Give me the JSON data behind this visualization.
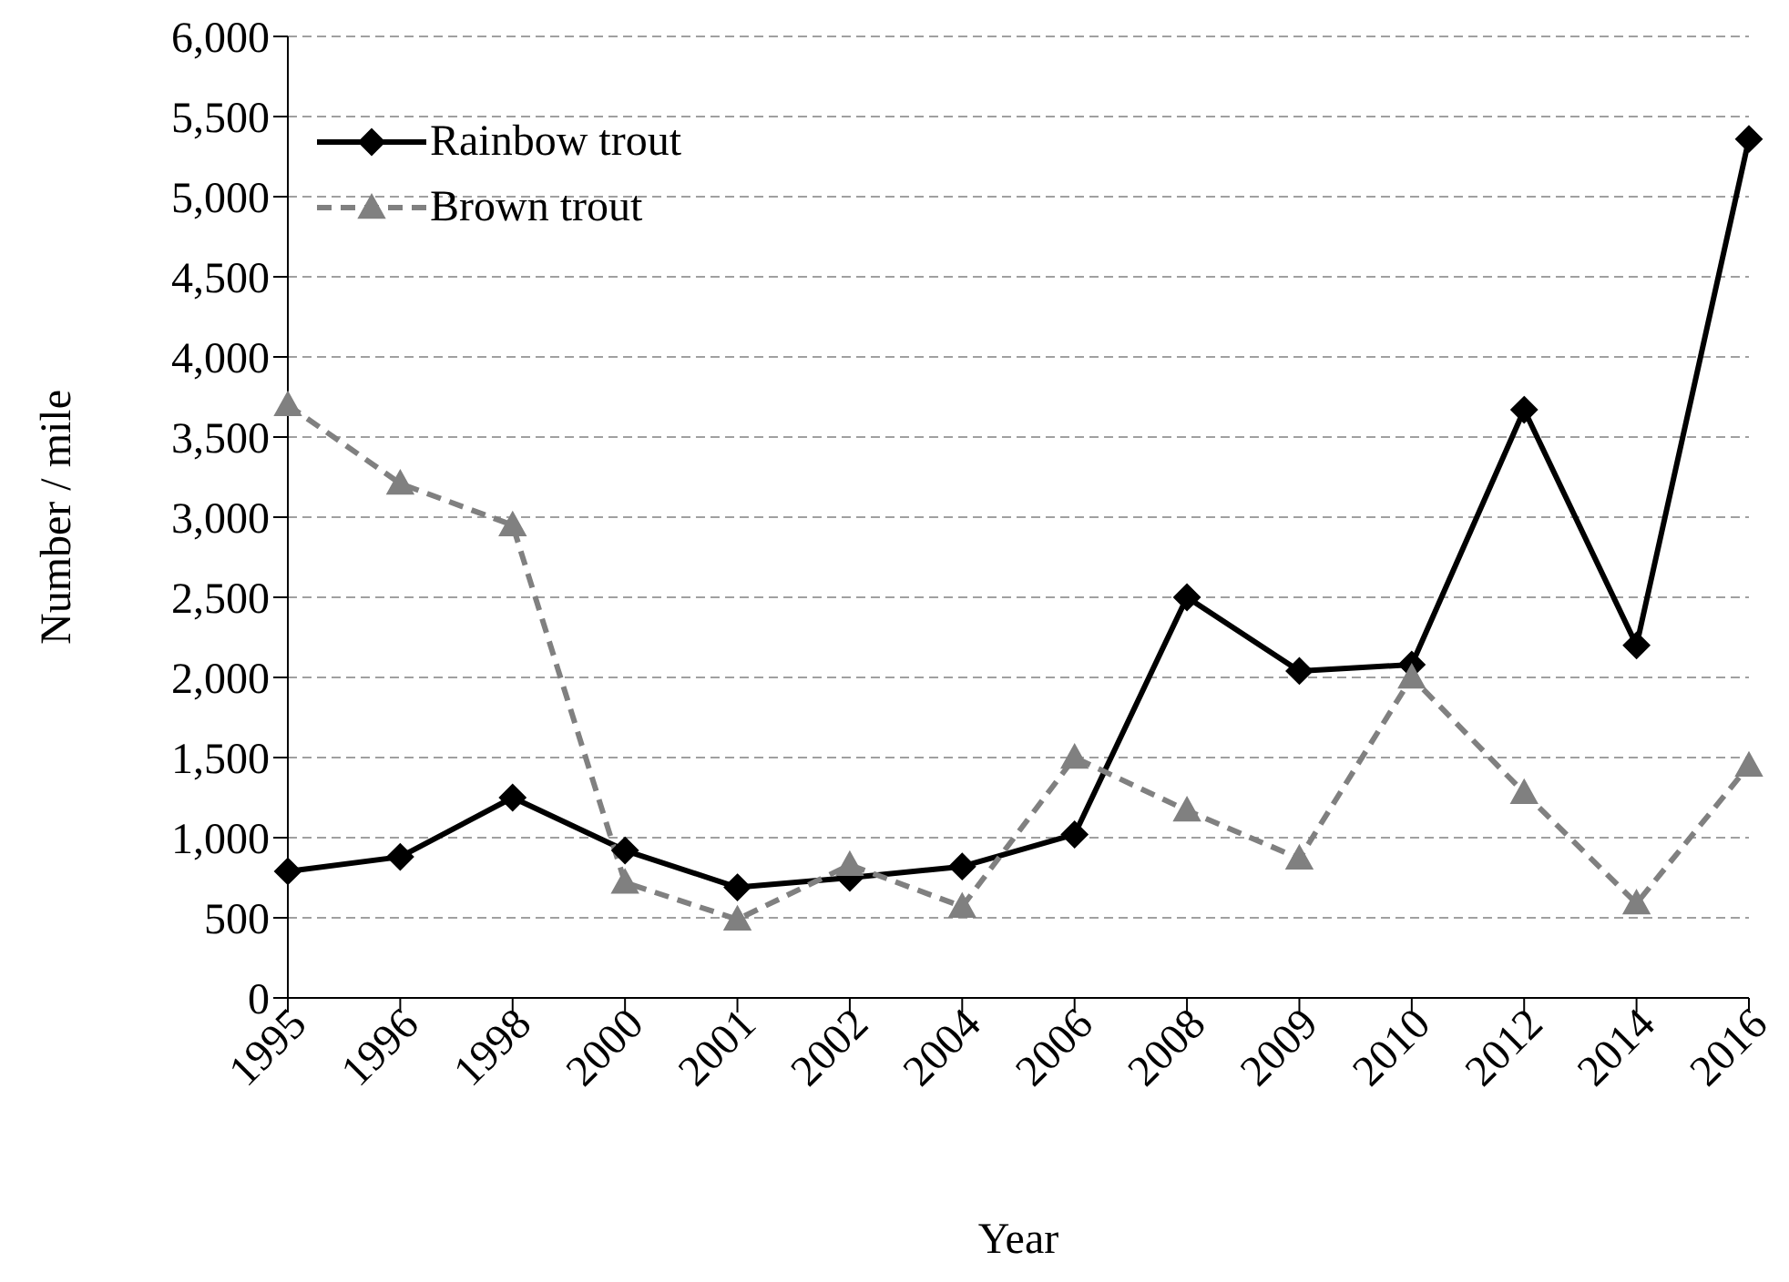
{
  "chart_data": {
    "type": "line",
    "xlabel": "Year",
    "ylabel": "Number / mile",
    "categories": [
      "1995",
      "1996",
      "1998",
      "2000",
      "2001",
      "2002",
      "2004",
      "2006",
      "2008",
      "2009",
      "2010",
      "2012",
      "2014",
      "2016"
    ],
    "series": [
      {
        "name": "Rainbow trout",
        "color": "#000000",
        "marker": "diamond",
        "line_style": "solid",
        "values": [
          790,
          880,
          1250,
          920,
          690,
          750,
          820,
          1020,
          2500,
          2040,
          2080,
          3670,
          2200,
          5360
        ]
      },
      {
        "name": "Brown trout",
        "color": "#808080",
        "marker": "triangle",
        "line_style": "dashed",
        "values": [
          3700,
          3210,
          2950,
          720,
          490,
          830,
          570,
          1500,
          1170,
          870,
          2000,
          1280,
          590,
          1450
        ]
      }
    ],
    "ylim": [
      0,
      6000
    ],
    "yticks": [
      0,
      {
        "value": 500,
        "label": "500"
      },
      {
        "value": 1000,
        "label": "1,000"
      },
      {
        "value": 1500,
        "label": "1,500"
      },
      {
        "value": 2000,
        "label": "2,000"
      },
      {
        "value": 2500,
        "label": "2,500"
      },
      {
        "value": 3000,
        "label": "3,000"
      },
      {
        "value": 3500,
        "label": "3,500"
      },
      {
        "value": 4000,
        "label": "4,000"
      },
      {
        "value": 4500,
        "label": "4,500"
      },
      {
        "value": 5000,
        "label": "5,000"
      },
      {
        "value": 5500,
        "label": "5,500"
      },
      {
        "value": 6000,
        "label": "6,000"
      }
    ],
    "grid": "y",
    "legend": "top left"
  }
}
